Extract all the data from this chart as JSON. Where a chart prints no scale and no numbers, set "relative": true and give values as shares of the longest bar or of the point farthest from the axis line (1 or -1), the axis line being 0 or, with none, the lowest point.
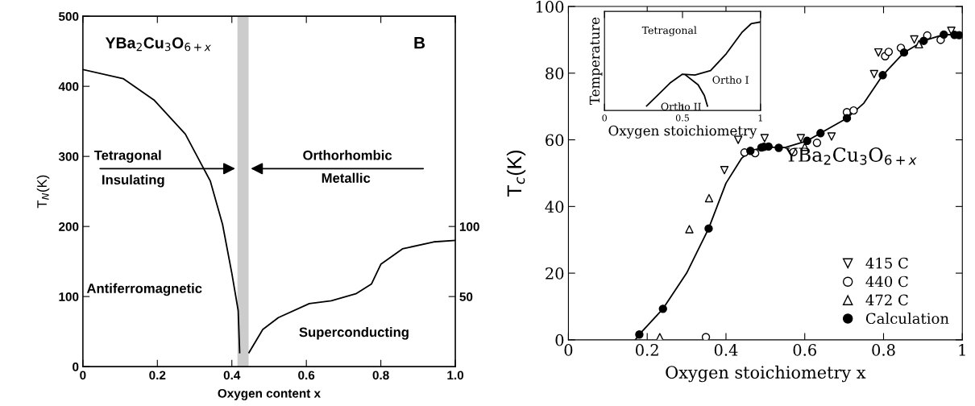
{
  "chart_data": [
    {
      "type": "line",
      "xlabel": "Oxygen content x",
      "ylabel": "T$_{N}$(K)",
      "xlim": [
        0,
        1.0
      ],
      "xticks": [
        0,
        0.2,
        0.4,
        0.6,
        0.8,
        {
          "value": 1,
          "label": "1.0"
        }
      ],
      "ylim": [
        0,
        500
      ],
      "yticks": [
        0,
        100,
        200,
        300,
        400,
        500
      ],
      "y2lim": [
        0,
        250
      ],
      "y2ticks": [
        50,
        100
      ],
      "series": [
        {
          "color": "#000000",
          "x": [
            0,
            0.108,
            0.192,
            0.275,
            0.342,
            0.375,
            0.4,
            0.417,
            0.421
          ],
          "values": [
            424,
            411,
            380,
            332,
            265,
            203,
            133,
            80,
            20
          ]
        },
        {
          "color": "#000000",
          "axis": "y2",
          "x": [
            0.446,
            0.483,
            0.525,
            0.608,
            0.667,
            0.733,
            0.775,
            0.8,
            0.858,
            0.942,
            1.0
          ],
          "values": [
            10,
            26.5,
            35,
            45,
            47,
            52,
            59,
            73,
            84,
            89,
            90
          ]
        }
      ],
      "bands": [
        {
          "axis": "x",
          "from": 0.415,
          "to": 0.445,
          "color": "#cccccc"
        }
      ],
      "annotations": [
        "YBa$_{2}$Cu$_{3}$O$_{6+x}$",
        "B",
        "Tetragonal",
        "Insulating",
        "Orthorhombic",
        "Metallic",
        "Antiferromagnetic",
        "Superconducting"
      ]
    },
    {
      "type": "scatter",
      "xlabel": "Oxygen stoichiometry x",
      "ylabel": "T$_{c}$(K)",
      "xlim": [
        0,
        1
      ],
      "xticks": [
        0,
        0.2,
        0.4,
        0.6,
        0.8,
        1
      ],
      "ylim": [
        0,
        100
      ],
      "yticks": [
        0,
        20,
        40,
        60,
        80,
        100
      ],
      "legend": "bottom right",
      "series": [
        {
          "type": "line",
          "color": "#000000",
          "x": [
            0.17,
            0.18,
            0.24,
            0.3,
            0.356,
            0.4,
            0.44,
            0.462,
            0.5,
            0.55,
            0.606,
            0.64,
            0.707,
            0.75,
            0.798,
            0.852,
            0.902,
            0.953,
            1.0
          ],
          "values": [
            0,
            1.6,
            9.3,
            20,
            33.4,
            47,
            54.5,
            56.7,
            57.8,
            57.7,
            59.7,
            62,
            66.5,
            71,
            79.4,
            86.2,
            89.7,
            91.6,
            91.5
          ]
        },
        {
          "name": "415 C",
          "color": "#000000",
          "marker": "triangle_down_open",
          "x": [
            0.396,
            0.431,
            0.498,
            0.59,
            0.668,
            0.776,
            0.787,
            0.878,
            0.972
          ],
          "values": [
            50.9,
            60,
            60.5,
            60.5,
            61,
            79.7,
            86.2,
            90.1,
            92.7
          ]
        },
        {
          "name": "440 C",
          "color": "#000000",
          "marker": "circle_open",
          "x": [
            0.349,
            0.447,
            0.474,
            0.571,
            0.631,
            0.707,
            0.724,
            0.804,
            0.813,
            0.844,
            0.911,
            0.945
          ],
          "values": [
            0.8,
            56.2,
            56,
            56.3,
            59.1,
            68.3,
            68.8,
            85.1,
            86.4,
            87.6,
            91.3,
            90
          ]
        },
        {
          "name": "472 C",
          "color": "#000000",
          "marker": "triangle_open",
          "x": [
            0.232,
            0.307,
            0.357,
            0.6,
            0.89
          ],
          "values": [
            0.8,
            33.2,
            42.5,
            57.9,
            88.7
          ]
        },
        {
          "name": "Calculation",
          "color": "#000000",
          "marker": "circle",
          "x": [
            0.18,
            0.24,
            0.356,
            0.462,
            0.49,
            0.496,
            0.508,
            0.534,
            0.606,
            0.64,
            0.707,
            0.798,
            0.852,
            0.902,
            0.953,
            0.98,
            0.992
          ],
          "values": [
            1.6,
            9.3,
            33.4,
            56.7,
            57.7,
            57.9,
            58,
            57.6,
            59.7,
            62,
            66.5,
            79.4,
            86.2,
            89.7,
            91.6,
            91.5,
            91.4
          ]
        }
      ],
      "annotations": [
        "YBa$_{2}$Cu$_{3}$O$_{6+x}$"
      ]
    },
    {
      "type": "line",
      "relative": true,
      "xlabel": "Oxygen stoichiometry",
      "ylabel": "Temperature",
      "xlim": [
        0,
        1
      ],
      "xticks": [
        0,
        0.5,
        1
      ],
      "series": [
        {
          "color": "#000000",
          "x": [
            0.27,
            0.34,
            0.42,
            0.5,
            0.58,
            0.68,
            0.78,
            0.88,
            0.94,
            1.0
          ],
          "values": [
            0.05,
            0.17,
            0.31,
            0.41,
            0.4,
            0.45,
            0.64,
            0.88,
            0.98,
            1
          ]
        },
        {
          "color": "#000000",
          "x": [
            0.52,
            0.6,
            0.64,
            0.66
          ],
          "values": [
            0.4,
            0.29,
            0.17,
            0.05
          ]
        }
      ],
      "annotations": [
        "Tetragonal",
        "Ortho I",
        "Ortho II"
      ]
    }
  ]
}
